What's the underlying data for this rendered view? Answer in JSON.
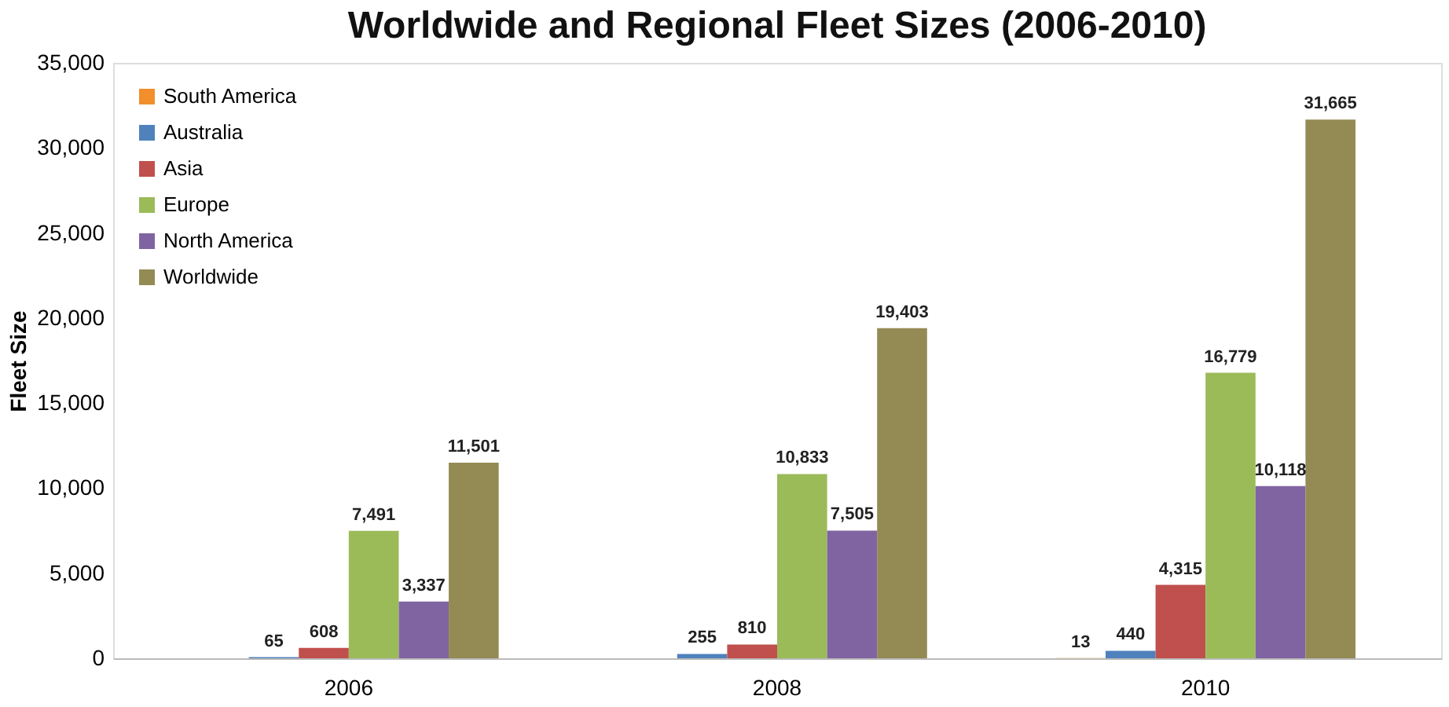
{
  "chart_data": {
    "type": "bar",
    "title": "Worldwide and Regional Fleet Sizes (2006-2010)",
    "ylabel": "Fleet Size",
    "categories": [
      "2006",
      "2008",
      "2010"
    ],
    "series": [
      {
        "name": "South America",
        "color": "#f28e2b",
        "values": [
          null,
          null,
          13
        ],
        "value_labels": [
          null,
          null,
          "13"
        ]
      },
      {
        "name": "Australia",
        "color": "#4f81bd",
        "values": [
          65,
          255,
          440
        ],
        "value_labels": [
          "65",
          "255",
          "440"
        ]
      },
      {
        "name": "Asia",
        "color": "#c0504d",
        "values": [
          608,
          810,
          4315
        ],
        "value_labels": [
          "608",
          "810",
          "4,315"
        ]
      },
      {
        "name": "Europe",
        "color": "#9bbb59",
        "values": [
          7491,
          10833,
          16779
        ],
        "value_labels": [
          "7,491",
          "10,833",
          "16,779"
        ]
      },
      {
        "name": "North America",
        "color": "#8064a2",
        "values": [
          3337,
          7505,
          10118
        ],
        "value_labels": [
          "3,337",
          "7,505",
          "10,118"
        ]
      },
      {
        "name": "Worldwide",
        "color": "#948a54",
        "values": [
          11501,
          19403,
          31665
        ],
        "value_labels": [
          "11,501",
          "19,403",
          "31,665"
        ]
      }
    ],
    "ylim": [
      0,
      35000
    ],
    "yticks": [
      0,
      {
        "value": 5000,
        "label": "5,000"
      },
      {
        "value": 10000,
        "label": "10,000"
      },
      {
        "value": 15000,
        "label": "15,000"
      },
      {
        "value": 20000,
        "label": "20,000"
      },
      {
        "value": 25000,
        "label": "25,000"
      },
      {
        "value": 30000,
        "label": "30,000"
      },
      {
        "value": 35000,
        "label": "35,000"
      }
    ],
    "grid": false,
    "legend": "top left"
  }
}
